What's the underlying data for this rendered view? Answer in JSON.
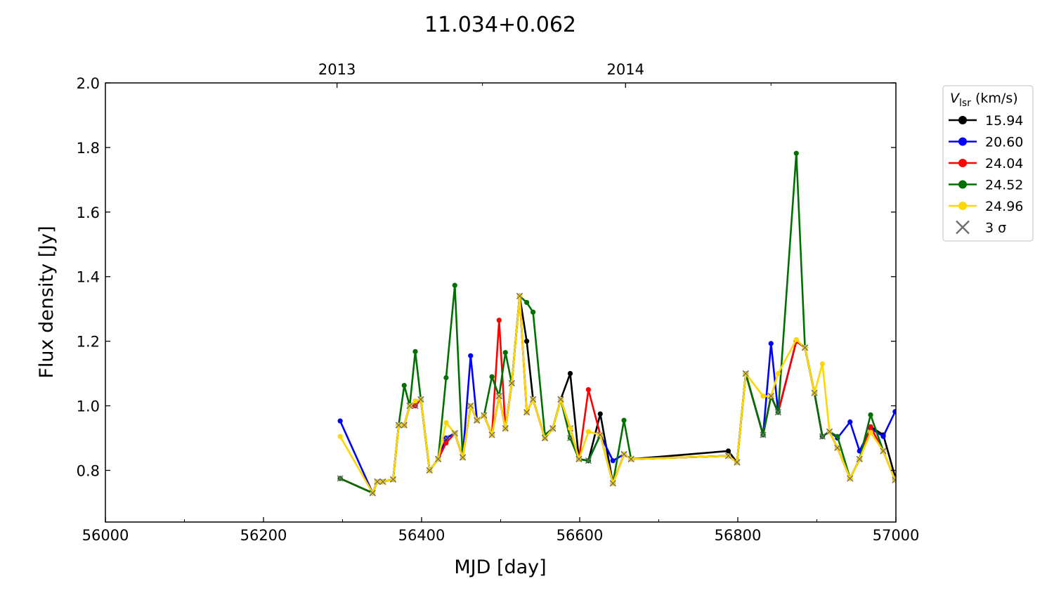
{
  "chart_data": {
    "type": "line",
    "title": "11.034+0.062",
    "xlabel": "MJD [day]",
    "ylabel": "Flux density [Jy]",
    "xlim": [
      56000,
      57000
    ],
    "ylim": [
      0.64,
      2.0
    ],
    "xticks": [
      56000,
      56200,
      56400,
      56600,
      56800,
      57000
    ],
    "yticks": [
      0.8,
      1.0,
      1.2,
      1.4,
      1.6,
      1.8,
      2.0
    ],
    "ytick_labels": [
      "0.8",
      "1.0",
      "1.2",
      "1.4",
      "1.6",
      "1.8",
      "2.0"
    ],
    "top_axis": {
      "ticks": [
        {
          "x": 56293,
          "label": "2013"
        },
        {
          "x": 56658,
          "label": "2014"
        }
      ]
    },
    "legend": {
      "title_main": "V",
      "title_sub": "lsr",
      "title_unit": " (km/s)",
      "position": "right-outside",
      "sigma_label": "3 σ"
    },
    "colors": {
      "15.94": "#000000",
      "20.60": "#0000ff",
      "24.04": "#ff0000",
      "24.52": "#007000",
      "24.96": "#ffd700",
      "sigma": "#707070"
    },
    "base_x": [
      56297,
      56338,
      56344,
      56351,
      56364,
      56371,
      56378,
      56385,
      56392,
      56399,
      56410,
      56421,
      56431,
      56442,
      56452,
      56462,
      56470,
      56479,
      56489,
      56498,
      56506,
      56514,
      56524,
      56533,
      56541,
      56556,
      56566,
      56576,
      56588,
      56599,
      56611,
      56626,
      56642,
      56656,
      56665,
      56788,
      56799,
      56810,
      56832,
      56842,
      56851,
      56874,
      56885,
      56897,
      56907,
      56916,
      56926,
      56942,
      56954,
      56968,
      56984,
      56999
    ],
    "series": [
      {
        "name": "15.94",
        "values": [
          0.775,
          0.73,
          0.765,
          0.765,
          0.772,
          0.94,
          0.94,
          1.0,
          1.0,
          1.02,
          0.8,
          0.835,
          0.9,
          0.915,
          0.84,
          1.0,
          0.955,
          0.97,
          0.91,
          1.03,
          0.93,
          1.07,
          1.34,
          1.2,
          1.02,
          0.9,
          0.93,
          1.02,
          1.1,
          0.835,
          0.83,
          0.975,
          0.76,
          0.85,
          0.835,
          0.86,
          0.825,
          1.1,
          0.91,
          1.03,
          0.98,
          1.2,
          1.18,
          1.04,
          0.905,
          0.92,
          0.87,
          0.775,
          0.835,
          0.935,
          0.91,
          0.78
        ],
        "sigma": [
          false,
          true,
          true,
          true,
          true,
          true,
          true,
          true,
          true,
          true,
          true,
          true,
          false,
          true,
          true,
          true,
          true,
          true,
          true,
          true,
          true,
          true,
          true,
          false,
          true,
          true,
          true,
          true,
          false,
          true,
          true,
          false,
          true,
          true,
          true,
          false,
          true,
          true,
          true,
          true,
          true,
          false,
          true,
          false,
          true,
          true,
          true,
          true,
          true,
          false,
          false,
          true
        ]
      },
      {
        "name": "20.60",
        "values": [
          0.953,
          0.73,
          0.765,
          0.765,
          0.772,
          0.94,
          0.94,
          1.0,
          1.0,
          1.02,
          0.8,
          0.835,
          0.9,
          0.915,
          0.84,
          1.155,
          0.955,
          0.97,
          0.91,
          1.03,
          0.93,
          1.07,
          1.34,
          0.98,
          1.02,
          0.9,
          0.93,
          1.02,
          0.93,
          0.835,
          0.83,
          0.91,
          0.83,
          0.85,
          0.835,
          0.845,
          0.825,
          1.1,
          0.91,
          1.193,
          0.98,
          1.2,
          1.18,
          1.04,
          0.905,
          0.92,
          0.9,
          0.95,
          0.86,
          0.93,
          0.905,
          0.982
        ],
        "sigma": [
          false,
          true,
          true,
          true,
          true,
          true,
          true,
          true,
          true,
          true,
          true,
          true,
          true,
          true,
          true,
          false,
          true,
          true,
          true,
          true,
          true,
          true,
          true,
          true,
          true,
          true,
          true,
          true,
          true,
          true,
          true,
          true,
          false,
          true,
          true,
          true,
          true,
          true,
          true,
          false,
          true,
          false,
          true,
          true,
          true,
          true,
          false,
          false,
          false,
          false,
          false,
          false
        ]
      },
      {
        "name": "24.04",
        "values": [
          0.775,
          0.73,
          0.765,
          0.765,
          0.772,
          0.94,
          0.94,
          1.0,
          1.0,
          1.02,
          0.8,
          0.835,
          0.885,
          0.915,
          0.84,
          1.0,
          0.955,
          0.97,
          0.91,
          1.265,
          0.93,
          1.07,
          1.34,
          0.98,
          1.02,
          0.9,
          0.93,
          1.02,
          0.93,
          0.835,
          1.05,
          0.91,
          0.76,
          0.85,
          0.835,
          0.845,
          0.825,
          1.1,
          0.91,
          1.03,
          0.98,
          1.2,
          1.18,
          1.04,
          0.905,
          0.92,
          0.87,
          0.775,
          0.835,
          0.935,
          0.86,
          0.77
        ],
        "sigma": [
          true,
          true,
          true,
          true,
          true,
          true,
          true,
          true,
          true,
          true,
          true,
          true,
          false,
          true,
          true,
          true,
          true,
          true,
          true,
          false,
          true,
          true,
          true,
          true,
          true,
          true,
          true,
          true,
          true,
          true,
          false,
          true,
          true,
          true,
          true,
          true,
          true,
          true,
          true,
          true,
          true,
          false,
          true,
          true,
          true,
          true,
          true,
          true,
          true,
          false,
          true,
          true
        ]
      },
      {
        "name": "24.52",
        "values": [
          0.775,
          0.73,
          0.765,
          0.765,
          0.772,
          0.94,
          1.063,
          1.0,
          1.168,
          1.02,
          0.8,
          0.835,
          1.087,
          1.373,
          0.84,
          1.0,
          0.955,
          0.97,
          1.09,
          1.03,
          1.165,
          1.07,
          1.34,
          1.32,
          1.29,
          0.91,
          0.93,
          1.02,
          0.9,
          0.835,
          0.83,
          0.91,
          0.76,
          0.955,
          0.835,
          0.845,
          0.825,
          1.1,
          0.91,
          1.03,
          0.98,
          1.782,
          1.18,
          1.04,
          0.905,
          0.92,
          0.905,
          0.775,
          0.835,
          0.972,
          0.86,
          0.77
        ],
        "sigma": [
          true,
          true,
          true,
          true,
          true,
          true,
          false,
          true,
          false,
          true,
          true,
          true,
          false,
          false,
          true,
          true,
          true,
          true,
          false,
          true,
          false,
          true,
          true,
          false,
          false,
          false,
          true,
          true,
          true,
          true,
          true,
          true,
          true,
          false,
          true,
          true,
          true,
          true,
          true,
          true,
          true,
          false,
          true,
          true,
          true,
          true,
          false,
          true,
          true,
          false,
          true,
          true
        ]
      },
      {
        "name": "24.96",
        "values": [
          0.905,
          0.73,
          0.765,
          0.765,
          0.772,
          0.94,
          0.94,
          1.0,
          1.015,
          1.02,
          0.8,
          0.835,
          0.948,
          0.915,
          0.84,
          1.0,
          0.955,
          0.97,
          0.91,
          1.03,
          0.93,
          1.07,
          1.34,
          0.98,
          1.02,
          0.9,
          0.93,
          1.02,
          0.93,
          0.835,
          0.92,
          0.91,
          0.76,
          0.85,
          0.835,
          0.845,
          0.825,
          1.1,
          1.03,
          1.03,
          1.1,
          1.205,
          1.18,
          1.04,
          1.13,
          0.92,
          0.87,
          0.775,
          0.835,
          0.918,
          0.86,
          0.77
        ],
        "sigma": [
          false,
          true,
          true,
          true,
          true,
          true,
          true,
          true,
          false,
          true,
          true,
          true,
          false,
          true,
          true,
          true,
          true,
          true,
          true,
          true,
          true,
          true,
          true,
          true,
          true,
          true,
          true,
          true,
          false,
          true,
          false,
          true,
          true,
          true,
          true,
          true,
          true,
          true,
          false,
          true,
          false,
          false,
          true,
          true,
          false,
          true,
          true,
          true,
          true,
          false,
          true,
          true
        ]
      }
    ]
  }
}
